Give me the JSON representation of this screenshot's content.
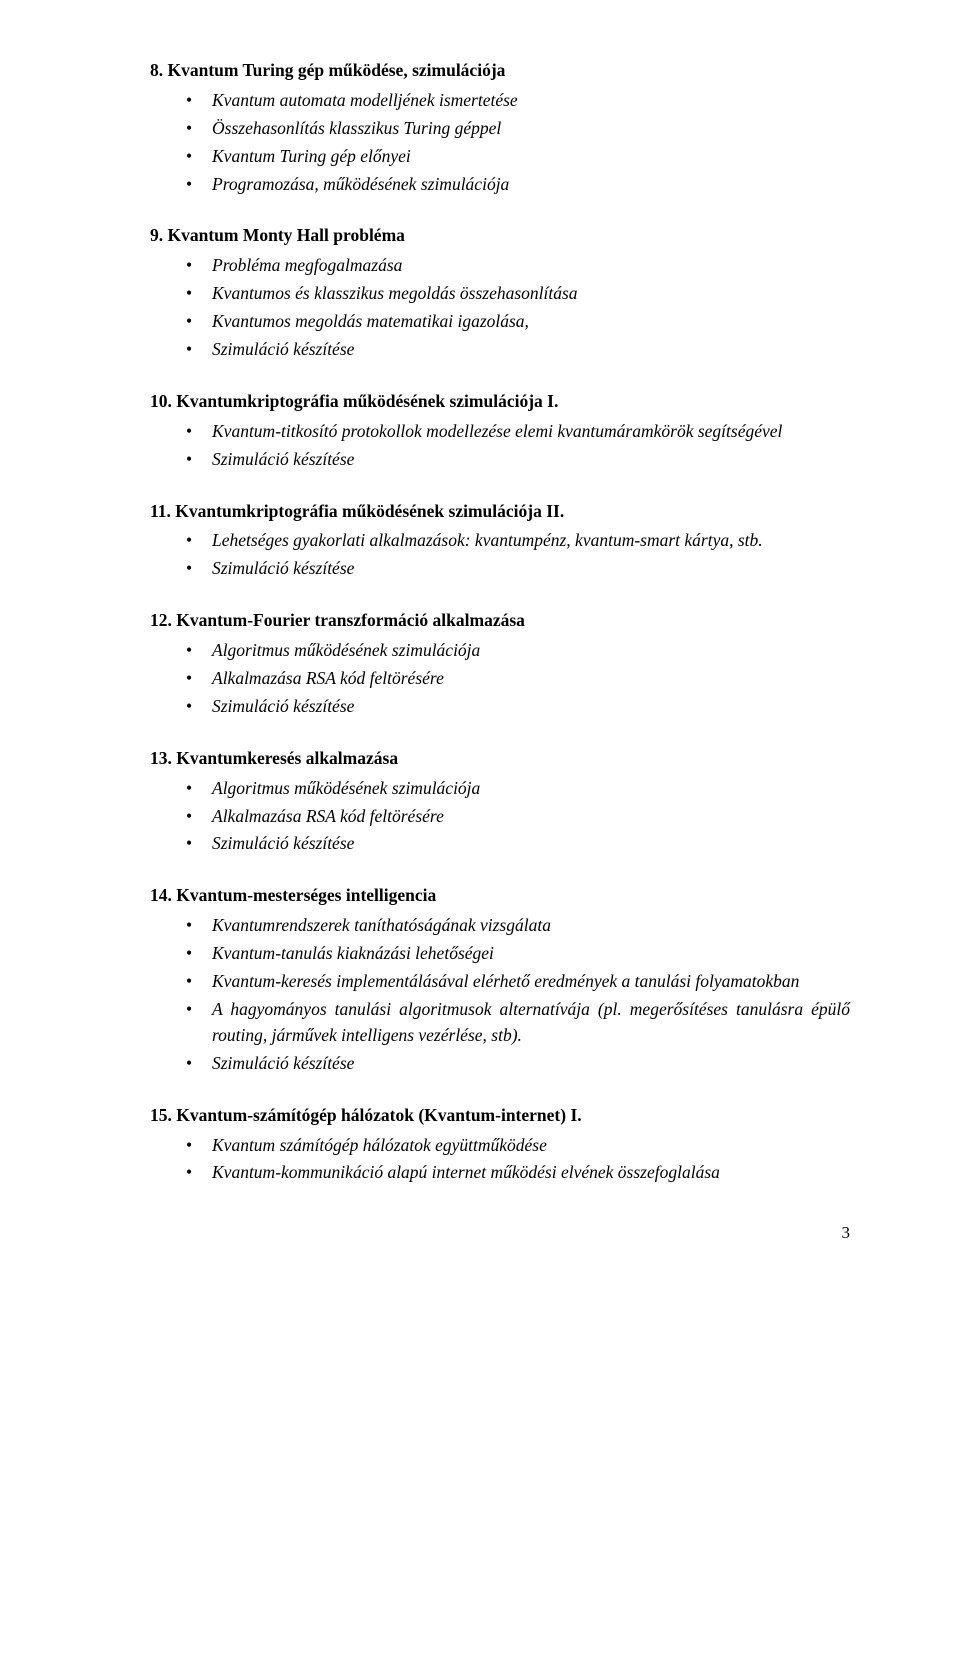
{
  "sections": [
    {
      "num": "8.",
      "title": "Kvantum Turing gép működése, szimulációja",
      "bullets": [
        "Kvantum automata modelljének ismertetése",
        "Összehasonlítás klasszikus Turing géppel",
        "Kvantum Turing gép előnyei",
        "Programozása, működésének szimulációja"
      ]
    },
    {
      "num": "9.",
      "title": "Kvantum Monty Hall probléma",
      "bullets": [
        "Probléma megfogalmazása",
        "Kvantumos és klasszikus megoldás összehasonlítása",
        "Kvantumos megoldás matematikai igazolása,",
        "Szimuláció készítése"
      ]
    },
    {
      "num": "10.",
      "title": "Kvantumkriptográfia működésének szimulációja I.",
      "bullets": [
        "Kvantum-titkosító protokollok modellezése elemi kvantumáramkörök segítségével",
        "Szimuláció készítése"
      ]
    },
    {
      "num": "11.",
      "title": "Kvantumkriptográfia működésének szimulációja II.",
      "bullets": [
        "Lehetséges gyakorlati alkalmazások: kvantumpénz, kvantum-smart kártya, stb.",
        "Szimuláció készítése"
      ]
    },
    {
      "num": "12.",
      "title": "Kvantum-Fourier transzformáció alkalmazása",
      "bullets": [
        "Algoritmus működésének szimulációja",
        "Alkalmazása RSA kód feltörésére",
        "Szimuláció készítése"
      ]
    },
    {
      "num": "13.",
      "title": "Kvantumkeresés alkalmazása",
      "bullets": [
        "Algoritmus működésének szimulációja",
        "Alkalmazása RSA kód feltörésére",
        "Szimuláció készítése"
      ]
    },
    {
      "num": "14.",
      "title": "Kvantum-mesterséges intelligencia",
      "bullets": [
        "Kvantumrendszerek taníthatóságának vizsgálata",
        "Kvantum-tanulás kiaknázási lehetőségei",
        "Kvantum-keresés implementálásával elérhető eredmények a tanulási folyamatokban",
        "A hagyományos tanulási algoritmusok alternatívája (pl. megerősítéses tanulásra épülő routing, járművek intelligens vezérlése, stb).",
        "Szimuláció készítése"
      ]
    },
    {
      "num": "15.",
      "title": "Kvantum-számítógép hálózatok (Kvantum-internet) I.",
      "bullets": [
        "Kvantum számítógép hálózatok együttműködése",
        "Kvantum-kommunikáció alapú internet működési elvének összefoglalása"
      ]
    }
  ],
  "page_number": "3"
}
